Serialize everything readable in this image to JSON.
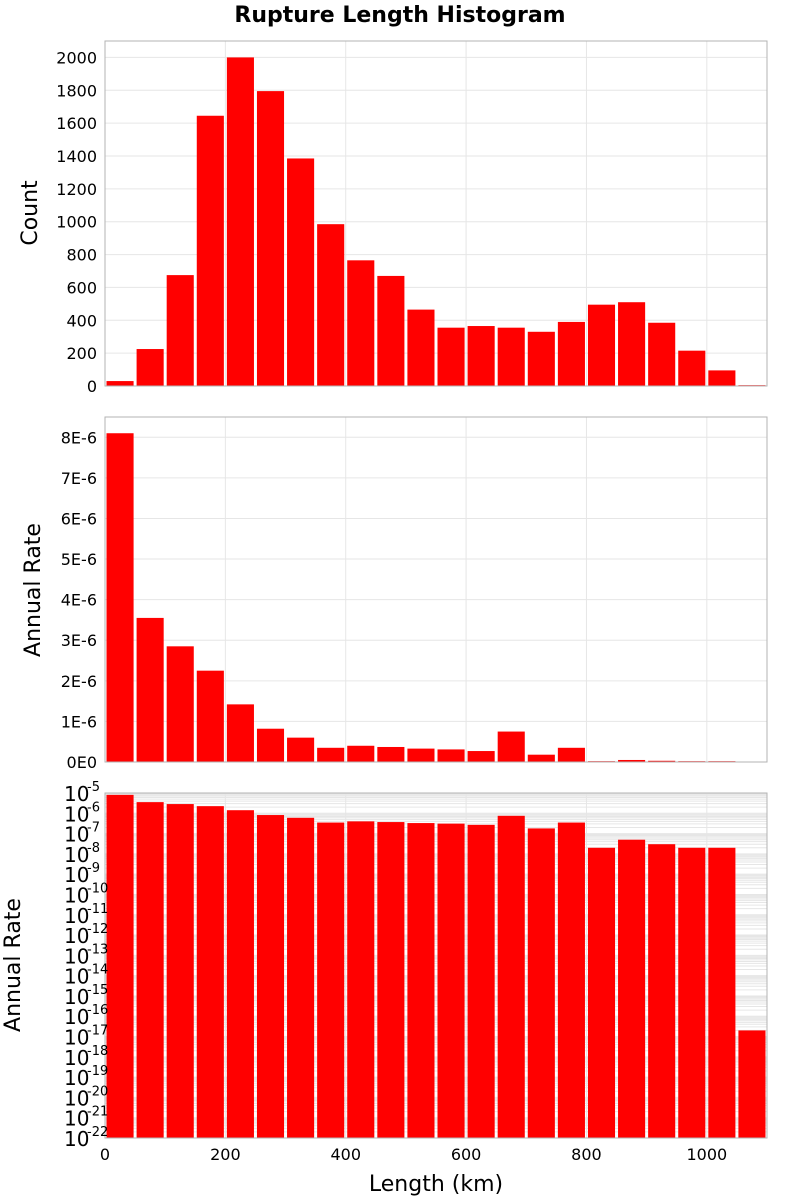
{
  "chart_data": {
    "title": "Rupture Length Histogram",
    "type": "bar",
    "xlabel": "Length (km)",
    "xlim": [
      0,
      1100
    ],
    "bin_width": 50,
    "bin_starts": [
      0,
      50,
      100,
      150,
      200,
      250,
      300,
      350,
      400,
      450,
      500,
      550,
      600,
      650,
      700,
      750,
      800,
      850,
      900,
      950,
      1000,
      1050
    ],
    "x_ticks": [
      "0",
      "200",
      "400",
      "600",
      "800",
      "1000"
    ],
    "x_tick_values": [
      0,
      200,
      400,
      600,
      800,
      1000
    ],
    "bar_color": "#ff0000",
    "panels": [
      {
        "id": "count",
        "ylabel": "Count",
        "scale": "linear",
        "ylim": [
          0,
          2100
        ],
        "y_tick_values": [
          0,
          200,
          400,
          600,
          800,
          1000,
          1200,
          1400,
          1600,
          1800,
          2000
        ],
        "y_ticks": [
          "0",
          "200",
          "400",
          "600",
          "800",
          "1000",
          "1200",
          "1400",
          "1600",
          "1800",
          "2000"
        ],
        "values": [
          30,
          225,
          675,
          1645,
          2000,
          1795,
          1385,
          985,
          765,
          670,
          465,
          355,
          365,
          355,
          330,
          390,
          495,
          510,
          385,
          215,
          95,
          5
        ]
      },
      {
        "id": "rate-linear",
        "ylabel": "Annual Rate",
        "scale": "linear",
        "ylim": [
          0,
          8.5e-06
        ],
        "y_tick_values": [
          0,
          1e-06,
          2e-06,
          3e-06,
          4e-06,
          5e-06,
          6e-06,
          7e-06,
          8e-06
        ],
        "y_ticks": [
          "0E0",
          "1E-6",
          "2E-6",
          "3E-6",
          "4E-6",
          "5E-6",
          "6E-6",
          "7E-6",
          "8E-6"
        ],
        "values": [
          8.1e-06,
          3.55e-06,
          2.85e-06,
          2.25e-06,
          1.42e-06,
          8.2e-07,
          6e-07,
          3.5e-07,
          4e-07,
          3.7e-07,
          3.3e-07,
          3.1e-07,
          2.7e-07,
          7.5e-07,
          1.8e-07,
          3.5e-07,
          2e-08,
          5e-08,
          3e-08,
          2e-08,
          2e-08,
          0.0
        ]
      },
      {
        "id": "rate-log",
        "ylabel": "Annual Rate",
        "scale": "log",
        "ylim_exp": [
          -22,
          -5
        ],
        "y_tick_base": "10",
        "y_tick_exponents": [
          "-5",
          "-6",
          "-7",
          "-8",
          "-9",
          "-10",
          "-11",
          "-12",
          "-13",
          "-14",
          "-15",
          "-16",
          "-17",
          "-18",
          "-19",
          "-20",
          "-21",
          "-22"
        ],
        "values": [
          8.1e-06,
          3.55e-06,
          2.85e-06,
          2.25e-06,
          1.42e-06,
          8.2e-07,
          6e-07,
          3.5e-07,
          4e-07,
          3.7e-07,
          3.3e-07,
          3.1e-07,
          2.7e-07,
          7.5e-07,
          1.8e-07,
          3.5e-07,
          2e-08,
          5e-08,
          3e-08,
          2e-08,
          2e-08,
          2e-17
        ]
      }
    ]
  }
}
